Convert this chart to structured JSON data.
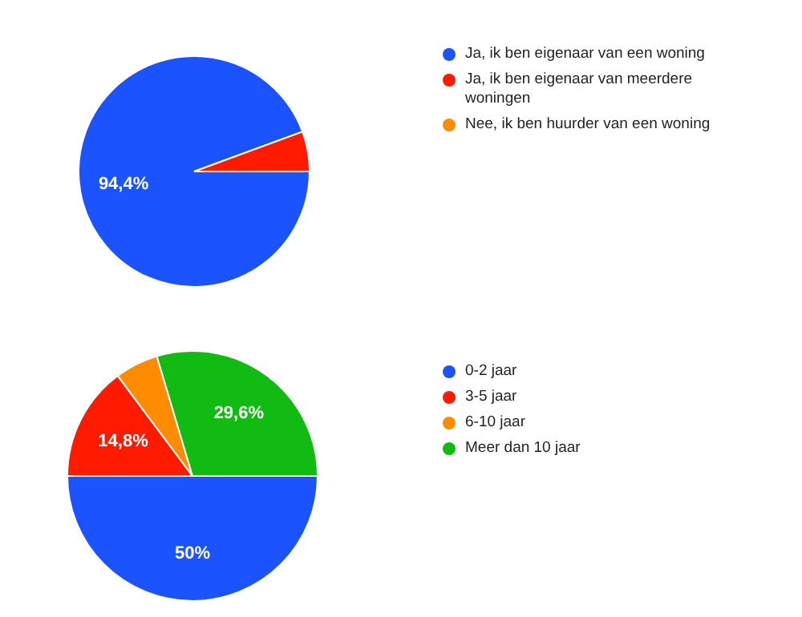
{
  "chart_data": [
    {
      "type": "pie",
      "categories": [
        "Ja, ik ben eigenaar van een woning",
        "Ja, ik ben eigenaar van meerdere woningen",
        "Nee, ik ben huurder van een woning"
      ],
      "values": [
        94.4,
        5.6,
        0
      ],
      "colors": [
        "#1a53ff",
        "#ff1a00",
        "#ff8c00"
      ],
      "value_labels": [
        "94,4%",
        null,
        null
      ],
      "legend": "right"
    },
    {
      "type": "pie",
      "categories": [
        "0-2 jaar",
        "3-5 jaar",
        "6-10 jaar",
        "Meer dan 10 jaar"
      ],
      "values": [
        50,
        14.8,
        5.6,
        29.6
      ],
      "colors": [
        "#1a53ff",
        "#ff1a00",
        "#ff8c00",
        "#11bb11"
      ],
      "value_labels": [
        "50%",
        "14,8%",
        null,
        "29,6%"
      ],
      "legend": "right"
    }
  ]
}
